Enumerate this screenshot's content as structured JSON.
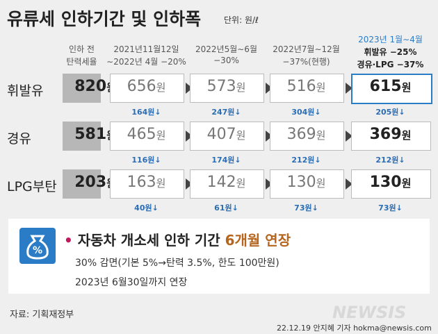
{
  "header": {
    "title": "유류세 인하기간 및 인하폭",
    "unit": "단위: 원/ℓ"
  },
  "table": {
    "columns": [
      {
        "lines": [
          "인하 전",
          "탄력세율"
        ]
      },
      {
        "lines": [
          "2021년11월12일",
          "∼2022년 4월 −20%"
        ]
      },
      {
        "lines": [
          "2022년5월∼6월",
          "−30%"
        ]
      },
      {
        "lines": [
          "2022년7월∼12월",
          "−37%(현행)"
        ]
      },
      {
        "lines": [
          "2023년 1월∼4월",
          "휘발유 −25%",
          "경유·LPG −37%"
        ]
      }
    ],
    "rows": [
      {
        "label": "휘발유",
        "prices": [
          {
            "amount": 820,
            "unit": "원"
          },
          {
            "amount": 656,
            "unit": "원"
          },
          {
            "amount": 573,
            "unit": "원"
          },
          {
            "amount": 516,
            "unit": "원"
          },
          {
            "amount": 615,
            "unit": "원"
          }
        ],
        "cuts": [
          "164원↓",
          "247원↓",
          "304원↓",
          "205원↓"
        ]
      },
      {
        "label": "경유",
        "prices": [
          {
            "amount": 581,
            "unit": "원"
          },
          {
            "amount": 465,
            "unit": "원"
          },
          {
            "amount": 407,
            "unit": "원"
          },
          {
            "amount": 369,
            "unit": "원"
          },
          {
            "amount": 369,
            "unit": "원"
          }
        ],
        "cuts": [
          "116원↓",
          "174원↓",
          "212원↓",
          "212원↓"
        ]
      },
      {
        "label": "LPG부탄",
        "prices": [
          {
            "amount": 203,
            "unit": "원"
          },
          {
            "amount": 163,
            "unit": "원"
          },
          {
            "amount": 142,
            "unit": "원"
          },
          {
            "amount": 130,
            "unit": "원"
          },
          {
            "amount": 130,
            "unit": "원"
          }
        ],
        "cuts": [
          "40원↓",
          "61원↓",
          "73원↓",
          "73원↓"
        ]
      }
    ]
  },
  "notice": {
    "headline": "자동차 개소세 인하 기간",
    "highlight": "6개월 연장",
    "lines": [
      "30% 감면(기본 5%→탄력 3.5%, 한도 100만원)",
      "2023년 6월30일까지 연장"
    ]
  },
  "footer": {
    "source": "자료: 기획재정부",
    "credit": "22.12.19 안지혜 기자 hokma@newsis.com",
    "logo": "NEWSIS"
  }
}
